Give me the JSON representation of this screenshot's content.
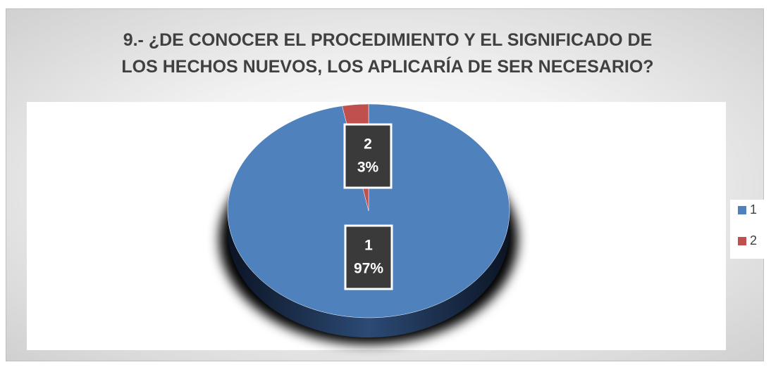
{
  "chart_data": {
    "type": "pie",
    "title": "9.- ¿DE CONOCER EL PROCEDIMIENTO Y EL SIGNIFICADO DE LOS HECHOS NUEVOS, LOS APLICARÍA DE SER NECESARIO?",
    "categories": [
      "1",
      "2"
    ],
    "values": [
      97,
      3
    ],
    "value_labels": [
      "97%",
      "3%"
    ],
    "colors": [
      "#4f81bd",
      "#c0504d"
    ],
    "legend": "right"
  }
}
